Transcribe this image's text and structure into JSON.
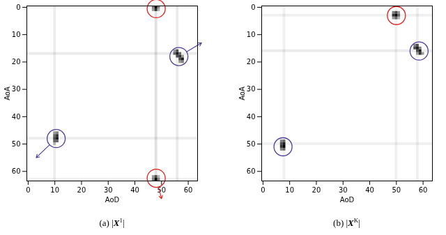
{
  "chart_data": [
    {
      "type": "heatmap",
      "caption": {
        "prefix": "(a)",
        "open": "|",
        "symbol": "X",
        "superscript": "1",
        "close": "|"
      },
      "xlabel": "AoD",
      "ylabel": "AoA",
      "xlim": [
        -0.5,
        63.5
      ],
      "ylim": [
        63.5,
        -0.5
      ],
      "xticks": [
        0,
        10,
        20,
        30,
        40,
        50,
        60
      ],
      "yticks": [
        0,
        10,
        20,
        30,
        40,
        50,
        60
      ],
      "clim": [
        0,
        1
      ],
      "bands": [
        {
          "aod": 48,
          "value": 0.12
        },
        {
          "aod": 56,
          "value": 0.08
        },
        {
          "aod": 10,
          "value": 0.07
        },
        {
          "aoa": 17,
          "value": 0.08
        },
        {
          "aoa": 48,
          "value": 0.07
        },
        {
          "aoa": 0,
          "value": 0.05
        },
        {
          "aoa": 63,
          "value": 0.05
        }
      ],
      "cells": [
        [
          47,
          0,
          0.5
        ],
        [
          48,
          0,
          1
        ],
        [
          49,
          0,
          0.5
        ],
        [
          47,
          1,
          0.4
        ],
        [
          48,
          1,
          0.8
        ],
        [
          49,
          1,
          0.3
        ],
        [
          47,
          62,
          0.4
        ],
        [
          48,
          62,
          0.7
        ],
        [
          49,
          62,
          0.3
        ],
        [
          47,
          63,
          0.5
        ],
        [
          48,
          63,
          1
        ],
        [
          49,
          63,
          0.5
        ],
        [
          55,
          16,
          0.4
        ],
        [
          56,
          16,
          0.7
        ],
        [
          55,
          17,
          0.6
        ],
        [
          56,
          17,
          0.9
        ],
        [
          57,
          17,
          0.6
        ],
        [
          56,
          18,
          0.7
        ],
        [
          57,
          18,
          0.8
        ],
        [
          58,
          18,
          0.4
        ],
        [
          57,
          19,
          0.7
        ],
        [
          58,
          19,
          0.9
        ],
        [
          58,
          20,
          0.5
        ],
        [
          57,
          20,
          0.4
        ],
        [
          10,
          46,
          0.4
        ],
        [
          11,
          46,
          0.5
        ],
        [
          10,
          47,
          0.6
        ],
        [
          11,
          47,
          0.8
        ],
        [
          10,
          48,
          0.7
        ],
        [
          11,
          48,
          0.9
        ],
        [
          10,
          49,
          0.6
        ],
        [
          11,
          49,
          0.6
        ],
        [
          10,
          50,
          0.3
        ]
      ],
      "circles": [
        {
          "x": 48,
          "y": 0.5,
          "color": "#e0201c"
        },
        {
          "x": 48,
          "y": 62.5,
          "color": "#e0201c",
          "arrow_to": [
            50,
            70
          ]
        },
        {
          "x": 56.5,
          "y": 18,
          "color": "#4a3f9a",
          "arrow_to": [
            65,
            13
          ]
        },
        {
          "x": 10.5,
          "y": 48,
          "color": "#4a3f9a",
          "arrow_to": [
            3,
            55
          ]
        }
      ]
    },
    {
      "type": "heatmap",
      "caption": {
        "prefix": "(b)",
        "open": "|",
        "symbol": "X",
        "superscript": "K",
        "close": "|"
      },
      "xlabel": "AoD",
      "ylabel": "AoA",
      "xlim": [
        -0.5,
        63.5
      ],
      "ylim": [
        63.5,
        -0.5
      ],
      "xticks": [
        0,
        10,
        20,
        30,
        40,
        50,
        60
      ],
      "yticks": [
        0,
        10,
        20,
        30,
        40,
        50,
        60
      ],
      "clim": [
        0,
        1
      ],
      "bands": [
        {
          "aoa": 3,
          "value": 0.06
        },
        {
          "aoa": 16,
          "value": 0.08
        },
        {
          "aoa": 50,
          "value": 0.06
        },
        {
          "aod": 8,
          "value": 0.06
        },
        {
          "aod": 50,
          "value": 0.06
        },
        {
          "aod": 58,
          "value": 0.06
        }
      ],
      "cells": [
        [
          49,
          2,
          0.5
        ],
        [
          50,
          2,
          0.7
        ],
        [
          51,
          2,
          0.4
        ],
        [
          49,
          3,
          0.8
        ],
        [
          50,
          3,
          1
        ],
        [
          51,
          3,
          0.6
        ],
        [
          49,
          4,
          0.4
        ],
        [
          50,
          4,
          0.6
        ],
        [
          51,
          4,
          0.3
        ],
        [
          57,
          14,
          0.5
        ],
        [
          58,
          14,
          0.7
        ],
        [
          57,
          15,
          0.7
        ],
        [
          58,
          15,
          0.9
        ],
        [
          59,
          15,
          0.5
        ],
        [
          58,
          16,
          0.7
        ],
        [
          59,
          16,
          0.9
        ],
        [
          59,
          17,
          0.8
        ],
        [
          60,
          17,
          0.4
        ],
        [
          58,
          17,
          0.4
        ],
        [
          7,
          49,
          0.5
        ],
        [
          8,
          49,
          0.6
        ],
        [
          7,
          50,
          0.7
        ],
        [
          8,
          50,
          0.9
        ],
        [
          7,
          51,
          0.8
        ],
        [
          8,
          51,
          1
        ],
        [
          7,
          52,
          0.5
        ],
        [
          8,
          52,
          0.6
        ]
      ],
      "circles": [
        {
          "x": 50,
          "y": 3,
          "color": "#e0201c"
        },
        {
          "x": 58.5,
          "y": 16,
          "color": "#4a3f9a"
        },
        {
          "x": 7.5,
          "y": 51,
          "color": "#4a3f9a"
        }
      ]
    }
  ]
}
